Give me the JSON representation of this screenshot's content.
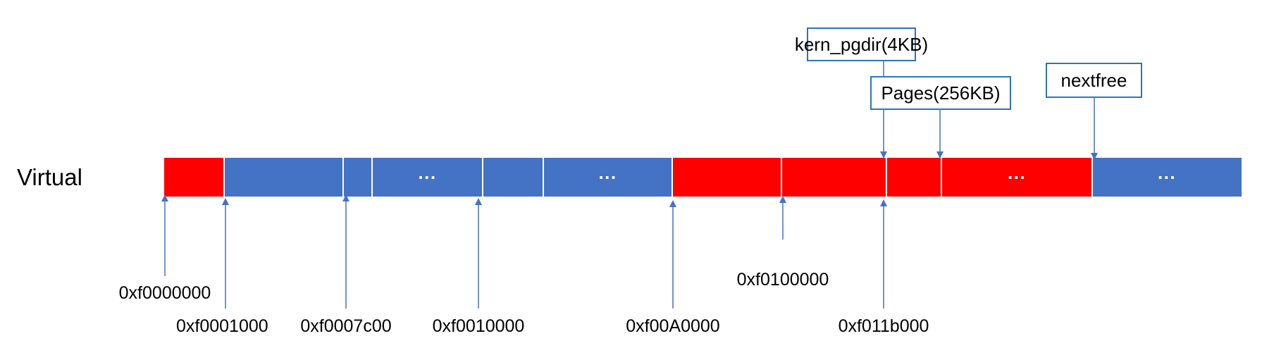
{
  "row_label": "Virtual",
  "colors": {
    "used": "#ff0000",
    "free": "#4472c4",
    "divider": "#ffffff",
    "arrow": "#4472c4",
    "callout_border": "#2e75b6",
    "text": "#000000"
  },
  "segments": [
    {
      "color": "used",
      "text": ""
    },
    {
      "color": "free",
      "text": ""
    },
    {
      "color": "free",
      "text": ""
    },
    {
      "color": "free",
      "text": "···"
    },
    {
      "color": "free",
      "text": ""
    },
    {
      "color": "free",
      "text": "···"
    },
    {
      "color": "used",
      "text": ""
    },
    {
      "color": "used",
      "text": ""
    },
    {
      "color": "used",
      "text": ""
    },
    {
      "color": "used",
      "text": "···"
    },
    {
      "color": "free",
      "text": "···"
    }
  ],
  "address_markers": [
    {
      "label": "0xf0000000"
    },
    {
      "label": "0xf0001000"
    },
    {
      "label": "0xf0007c00"
    },
    {
      "label": "0xf0010000"
    },
    {
      "label": "0xf00A0000"
    },
    {
      "label": "0xf0100000"
    },
    {
      "label": "0xf011b000"
    }
  ],
  "callouts": [
    {
      "label": "kern_pgdir(4KB)"
    },
    {
      "label": "Pages(256KB)"
    },
    {
      "label": "nextfree"
    }
  ]
}
